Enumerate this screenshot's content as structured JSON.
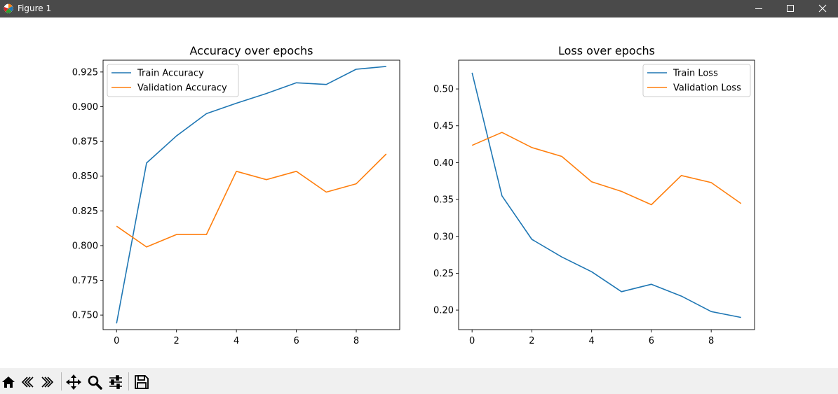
{
  "window": {
    "title": "Figure 1",
    "icon": "matplotlib-logo-icon",
    "controls": [
      "minimize-icon",
      "maximize-icon",
      "close-icon"
    ]
  },
  "toolbar": {
    "tools": [
      "home-icon",
      "back-arrow-icon",
      "forward-arrow-icon",
      "pan-move-icon",
      "zoom-magnifier-icon",
      "configure-subplots-icon",
      "save-disk-icon"
    ]
  },
  "colors": {
    "train": "#1f77b4",
    "validation": "#ff7f0e"
  },
  "chart_data": [
    {
      "type": "line",
      "title": "Accuracy over epochs",
      "xlabel": "",
      "ylabel": "",
      "xlim": [
        -0.45,
        9.45
      ],
      "ylim": [
        0.7395,
        0.9335
      ],
      "xticks": [
        0,
        2,
        4,
        6,
        8
      ],
      "xtick_labels": [
        "0",
        "2",
        "4",
        "6",
        "8"
      ],
      "yticks": [
        0.75,
        0.775,
        0.8,
        0.825,
        0.85,
        0.875,
        0.9,
        0.925
      ],
      "ytick_labels": [
        "0.750",
        "0.775",
        "0.800",
        "0.825",
        "0.850",
        "0.875",
        "0.900",
        "0.925"
      ],
      "grid": false,
      "legend": "upper-left",
      "x": [
        0,
        1,
        2,
        3,
        4,
        5,
        6,
        7,
        8,
        9
      ],
      "series": [
        {
          "name": "Train Accuracy",
          "values": [
            0.744,
            0.8595,
            0.879,
            0.895,
            0.9025,
            0.9095,
            0.9172,
            0.916,
            0.927,
            0.929
          ]
        },
        {
          "name": "Validation Accuracy",
          "values": [
            0.814,
            0.799,
            0.808,
            0.808,
            0.8535,
            0.8475,
            0.8535,
            0.8385,
            0.8445,
            0.866
          ]
        }
      ]
    },
    {
      "type": "line",
      "title": "Loss over epochs",
      "xlabel": "",
      "ylabel": "",
      "xlim": [
        -0.45,
        9.45
      ],
      "ylim": [
        0.1735,
        0.539
      ],
      "xticks": [
        0,
        2,
        4,
        6,
        8
      ],
      "xtick_labels": [
        "0",
        "2",
        "4",
        "6",
        "8"
      ],
      "yticks": [
        0.2,
        0.25,
        0.3,
        0.35,
        0.4,
        0.45,
        0.5
      ],
      "ytick_labels": [
        "0.20",
        "0.25",
        "0.30",
        "0.35",
        "0.40",
        "0.45",
        "0.50"
      ],
      "grid": false,
      "legend": "upper-right",
      "x": [
        0,
        1,
        2,
        3,
        4,
        5,
        6,
        7,
        8,
        9
      ],
      "series": [
        {
          "name": "Train Loss",
          "values": [
            0.522,
            0.355,
            0.296,
            0.272,
            0.252,
            0.225,
            0.235,
            0.219,
            0.198,
            0.19
          ]
        },
        {
          "name": "Validation Loss",
          "values": [
            0.4235,
            0.441,
            0.4205,
            0.4085,
            0.374,
            0.361,
            0.343,
            0.3825,
            0.373,
            0.3445
          ]
        }
      ]
    }
  ]
}
